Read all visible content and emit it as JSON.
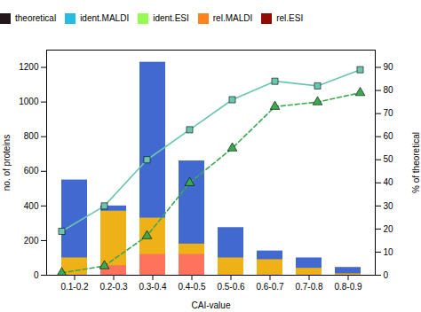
{
  "chart_data": {
    "type": "bar",
    "categories": [
      "0.1-0.2",
      "0.2-0.3",
      "0.3-0.4",
      "0.4-0.5",
      "0.5-0.6",
      "0.6-0.7",
      "0.7-0.8",
      "0.8-0.9"
    ],
    "xlabel": "CAI-value",
    "ylabel": "no. of proteins",
    "y2label": "% of theoretical",
    "ylim": [
      0,
      1300
    ],
    "yticks": [
      0,
      200,
      400,
      600,
      800,
      1000,
      1200
    ],
    "y2lim": [
      0,
      97.5
    ],
    "y2ticks": [
      0,
      10,
      20,
      30,
      40,
      50,
      60,
      70,
      80,
      90
    ],
    "grid": false,
    "legend": "top",
    "series": [
      {
        "name": "theoretical",
        "type": "bar",
        "values": [
          550,
          400,
          1230,
          660,
          275,
          140,
          100,
          45
        ]
      },
      {
        "name": "ident.MALDI",
        "type": "bar",
        "values": [
          100,
          370,
          330,
          180,
          100,
          90,
          40,
          8
        ]
      },
      {
        "name": "ident.ESI",
        "type": "bar",
        "values": [
          0,
          55,
          120,
          120,
          0,
          0,
          0,
          0
        ]
      },
      {
        "name": "rel.MALDI",
        "type": "line",
        "axis": "y2",
        "marker": "square",
        "line_style": "solid",
        "values": [
          19,
          30,
          50,
          63,
          76,
          84,
          82,
          89
        ]
      },
      {
        "name": "rel.ESI",
        "type": "line",
        "axis": "y2",
        "marker": "triangle",
        "line_style": "dashed",
        "values": [
          1,
          4,
          17,
          40,
          55,
          73,
          75,
          79
        ]
      }
    ]
  }
}
